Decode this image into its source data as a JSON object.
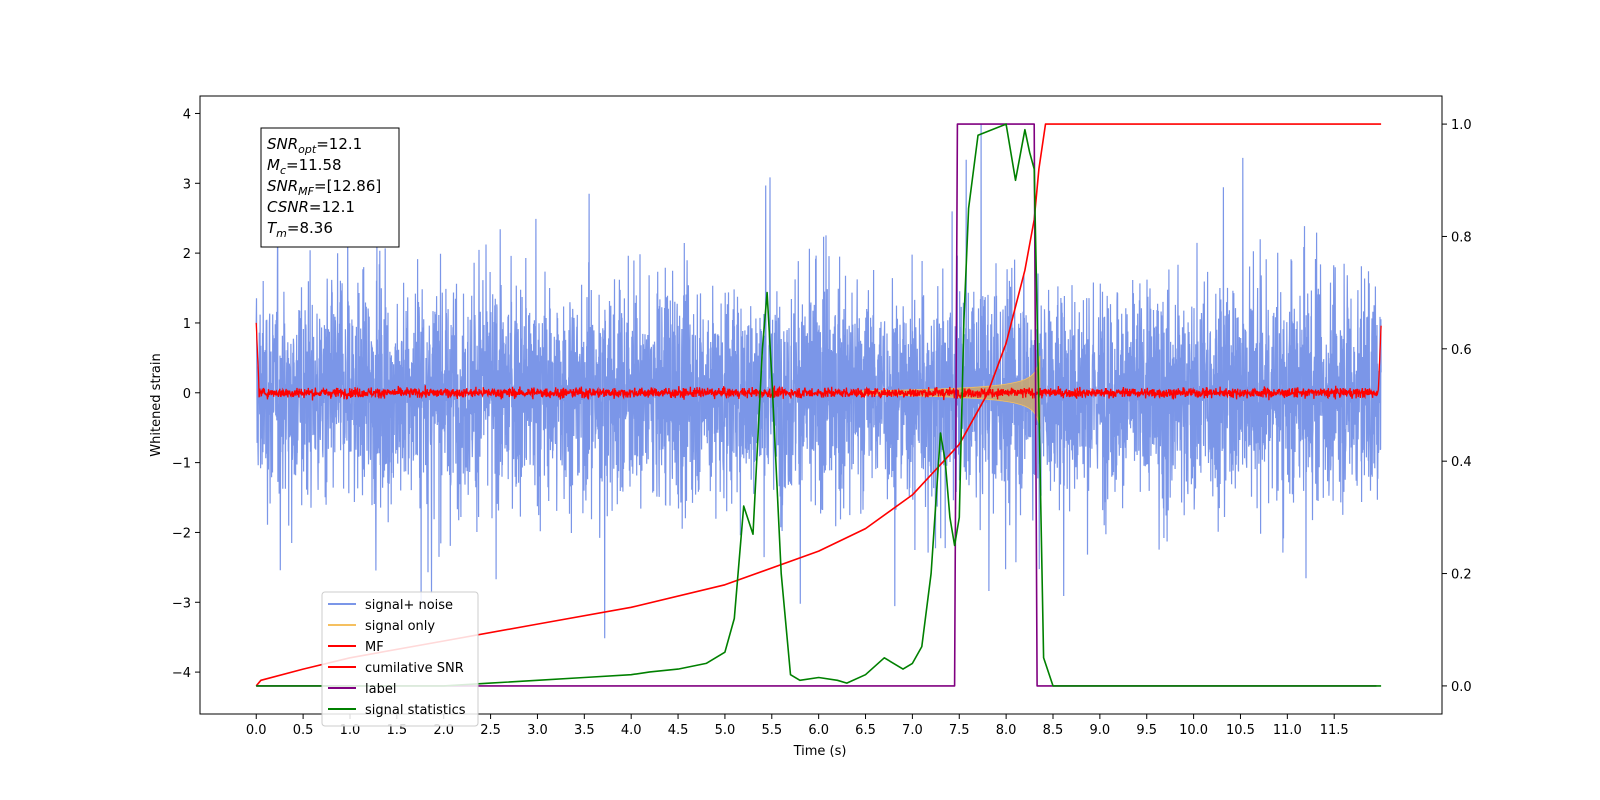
{
  "chart_data": {
    "type": "line",
    "xlabel": "Time (s)",
    "ylabel": "Whitened strain",
    "xlim": [
      -0.6,
      12.65
    ],
    "ylim": [
      -4.6,
      4.25
    ],
    "ylim_right": [
      -0.05,
      1.05
    ],
    "x_ticks": [
      "0.0",
      "0.5",
      "1.0",
      "1.5",
      "2.0",
      "2.5",
      "3.0",
      "3.5",
      "4.0",
      "4.5",
      "5.0",
      "5.5",
      "6.0",
      "6.5",
      "7.0",
      "7.5",
      "8.0",
      "8.5",
      "9.0",
      "9.5",
      "10.0",
      "10.5",
      "11.0",
      "11.5"
    ],
    "y_ticks_left": [
      "4",
      "3",
      "2",
      "1",
      "0",
      "−1",
      "−2",
      "−3",
      "−4"
    ],
    "y_ticks_right": [
      "1.0",
      "0.8",
      "0.6",
      "0.4",
      "0.2",
      "0.0"
    ],
    "grid": false,
    "legend_placement": "lower-left",
    "annotation": {
      "lines": [
        {
          "main": "SNR",
          "sub": "opt",
          "rest": "=12.1"
        },
        {
          "main": "M",
          "sub": "c",
          "rest": "=11.58"
        },
        {
          "main": "SNR",
          "sub": "MF",
          "rest": "=[12.86]"
        },
        {
          "main": "CSNR",
          "sub": "",
          "rest": "=12.1"
        },
        {
          "main": "T",
          "sub": "m",
          "rest": "=8.36"
        }
      ]
    },
    "series": [
      {
        "name": "signal+ noise",
        "color": "#7b96e8",
        "axis": "left",
        "description_values": {
          "x_range": [
            0.0,
            12.0
          ],
          "amplitude_approx": 3.8
        }
      },
      {
        "name": "signal only",
        "color": "#f5c060",
        "axis": "left",
        "chirp": {
          "start": 6.4,
          "merger": 8.36,
          "max_amplitude": 1.0
        }
      },
      {
        "name": "MF",
        "color": "#ff0000",
        "axis": "left",
        "description_values": {
          "x_range": [
            0.0,
            12.0
          ],
          "amplitude_approx": 0.12
        }
      },
      {
        "name": "cumilative SNR",
        "color": "#ff0000",
        "axis": "right",
        "x": [
          0.0,
          0.05,
          0.5,
          1.0,
          2.0,
          3.0,
          4.0,
          5.0,
          6.0,
          6.5,
          7.0,
          7.5,
          7.8,
          8.0,
          8.2,
          8.3,
          8.35,
          8.42,
          12.0
        ],
        "y": [
          0.0,
          0.01,
          0.03,
          0.05,
          0.08,
          0.11,
          0.14,
          0.18,
          0.24,
          0.28,
          0.34,
          0.43,
          0.52,
          0.61,
          0.74,
          0.83,
          0.92,
          1.0,
          1.0
        ]
      },
      {
        "name": "label",
        "color": "#800080",
        "axis": "right",
        "x": [
          0.0,
          7.45,
          7.48,
          8.3,
          8.33,
          11.95
        ],
        "y": [
          0.0,
          0.0,
          1.0,
          1.0,
          0.0,
          0.0
        ]
      },
      {
        "name": "signal statistics",
        "color": "#008000",
        "axis": "right",
        "x": [
          0.0,
          1.0,
          2.0,
          2.5,
          3.0,
          3.5,
          4.0,
          4.2,
          4.5,
          4.8,
          5.0,
          5.1,
          5.2,
          5.3,
          5.4,
          5.45,
          5.5,
          5.6,
          5.7,
          5.8,
          6.0,
          6.2,
          6.3,
          6.5,
          6.7,
          6.9,
          7.0,
          7.1,
          7.2,
          7.3,
          7.35,
          7.4,
          7.45,
          7.5,
          7.55,
          7.6,
          7.7,
          8.0,
          8.1,
          8.2,
          8.25,
          8.3,
          8.35,
          8.4,
          8.5,
          12.0
        ],
        "y": [
          0.0,
          0.0,
          0.0,
          0.005,
          0.01,
          0.015,
          0.02,
          0.025,
          0.03,
          0.04,
          0.06,
          0.12,
          0.32,
          0.27,
          0.6,
          0.7,
          0.55,
          0.2,
          0.02,
          0.01,
          0.015,
          0.01,
          0.005,
          0.02,
          0.05,
          0.03,
          0.04,
          0.07,
          0.2,
          0.45,
          0.4,
          0.3,
          0.25,
          0.3,
          0.65,
          0.85,
          0.98,
          1.0,
          0.9,
          0.99,
          0.95,
          0.92,
          0.5,
          0.05,
          0.0,
          0.0
        ]
      }
    ]
  }
}
